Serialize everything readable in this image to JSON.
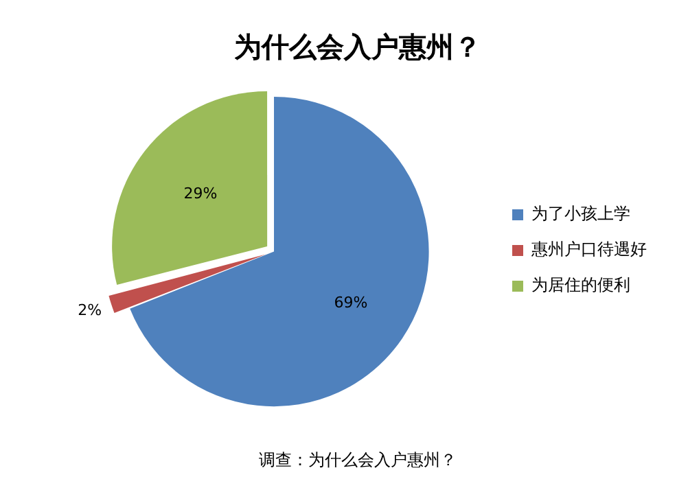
{
  "chart_data": {
    "type": "pie",
    "title": "为什么会入户惠州？",
    "categories": [
      "为了小孩上学",
      "惠州户口待遇好",
      "为居住的便利"
    ],
    "values": [
      69,
      2,
      29
    ],
    "colors": [
      "#4f81bd",
      "#c0504d",
      "#9bbb59"
    ],
    "value_labels": [
      "69%",
      "2%",
      "29%"
    ],
    "legend": "right",
    "annotations": [
      "调查：为什么会入户惠州？"
    ]
  }
}
